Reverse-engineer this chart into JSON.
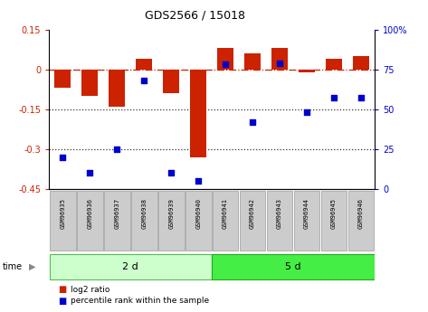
{
  "title": "GDS2566 / 15018",
  "samples": [
    "GSM96935",
    "GSM96936",
    "GSM96937",
    "GSM96938",
    "GSM96939",
    "GSM96940",
    "GSM96941",
    "GSM96942",
    "GSM96943",
    "GSM96944",
    "GSM96945",
    "GSM96946"
  ],
  "log2_ratio": [
    -0.07,
    -0.1,
    -0.14,
    0.04,
    -0.09,
    -0.33,
    0.08,
    0.06,
    0.08,
    -0.01,
    0.04,
    0.05
  ],
  "percentile_rank": [
    20,
    10,
    25,
    68,
    10,
    5,
    78,
    42,
    79,
    48,
    57,
    57
  ],
  "group1_label": "2 d",
  "group2_label": "5 d",
  "group1_count": 6,
  "group2_count": 6,
  "ylim_left": [
    -0.45,
    0.15
  ],
  "ylim_right": [
    0,
    100
  ],
  "yticks_left": [
    -0.45,
    -0.3,
    -0.15,
    0.0,
    0.15
  ],
  "yticks_right": [
    0,
    25,
    50,
    75,
    100
  ],
  "hlines_dotted": [
    -0.15,
    -0.3
  ],
  "bar_color": "#CC2200",
  "scatter_color": "#0000CC",
  "group1_bg": "#CCFFCC",
  "group2_bg": "#44EE44",
  "sample_box_color": "#CCCCCC",
  "tick_color_left": "#CC2200",
  "tick_color_right": "#0000CC",
  "legend_ratio_label": "log2 ratio",
  "legend_pct_label": "percentile rank within the sample",
  "time_label": "time",
  "hline0_color": "#CC2200",
  "hline_dotted_color": "#333333",
  "bar_width": 0.6
}
